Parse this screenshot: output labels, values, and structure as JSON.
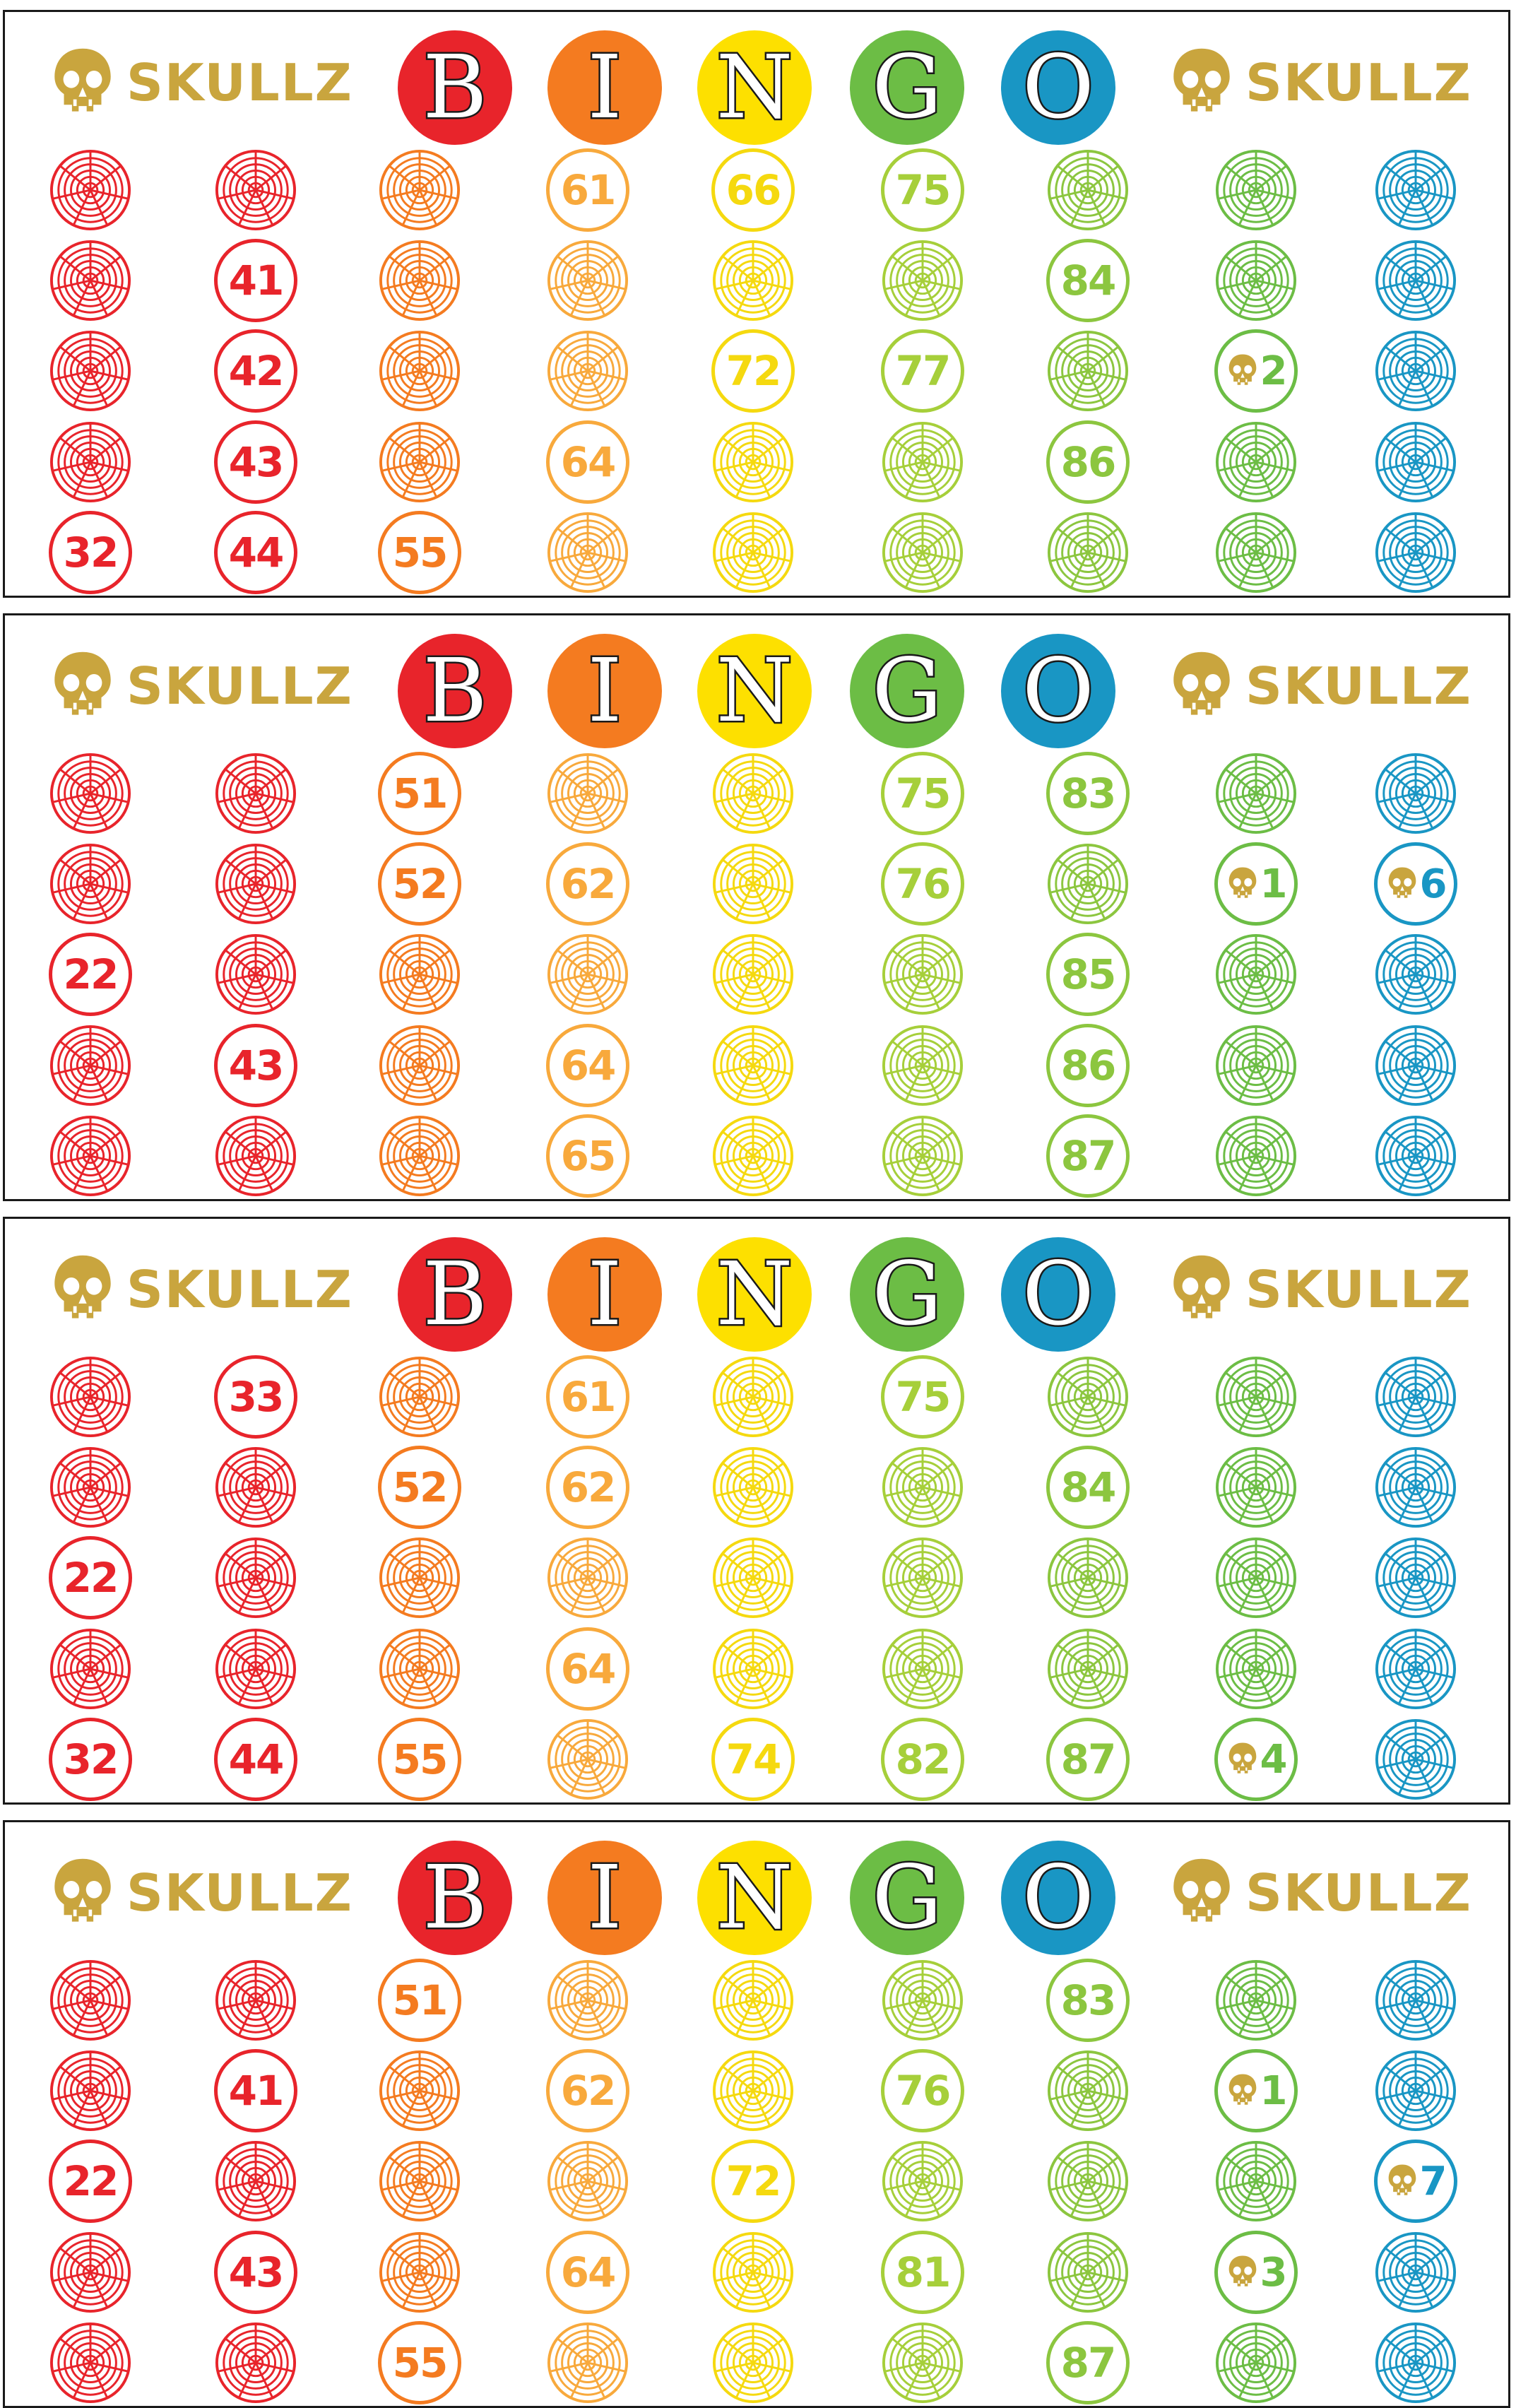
{
  "brand_label": "SKULLZ",
  "letters": [
    "B",
    "I",
    "N",
    "G",
    "O"
  ],
  "letter_colors": [
    "#e8242b",
    "#f47b20",
    "#fde000",
    "#6cbd45",
    "#1996c4"
  ],
  "column_colors": [
    "#e8242b",
    "#e8242b",
    "#f47b20",
    "#f8a93c",
    "#f5d90f",
    "#a6cf3a",
    "#8cc63f",
    "#6cbd45",
    "#1996c4"
  ],
  "icons": {
    "brand": "skull-icon",
    "blank_slot": "spiderweb-icon"
  },
  "cards": [
    {
      "rows": [
        [
          "",
          "",
          "",
          "61",
          "66",
          "75",
          "",
          "",
          ""
        ],
        [
          "",
          "41",
          "",
          "",
          "",
          "",
          "84",
          "",
          ""
        ],
        [
          "",
          "42",
          "",
          "",
          "72",
          "77",
          "",
          "2",
          ""
        ],
        [
          "",
          "43",
          "",
          "64",
          "",
          "",
          "86",
          "",
          ""
        ],
        [
          "32",
          "44",
          "55",
          "",
          "",
          "",
          "",
          "",
          ""
        ]
      ]
    },
    {
      "rows": [
        [
          "",
          "",
          "51",
          "",
          "",
          "75",
          "83",
          "",
          ""
        ],
        [
          "",
          "",
          "52",
          "62",
          "",
          "76",
          "",
          "1",
          "6"
        ],
        [
          "22",
          "",
          "",
          "",
          "",
          "",
          "85",
          "",
          ""
        ],
        [
          "",
          "43",
          "",
          "64",
          "",
          "",
          "86",
          "",
          ""
        ],
        [
          "",
          "",
          "",
          "65",
          "",
          "",
          "87",
          "",
          ""
        ]
      ]
    },
    {
      "rows": [
        [
          "",
          "33",
          "",
          "61",
          "",
          "75",
          "",
          "",
          ""
        ],
        [
          "",
          "",
          "52",
          "62",
          "",
          "",
          "84",
          "",
          ""
        ],
        [
          "22",
          "",
          "",
          "",
          "",
          "",
          "",
          "",
          ""
        ],
        [
          "",
          "",
          "",
          "64",
          "",
          "",
          "",
          "",
          ""
        ],
        [
          "32",
          "44",
          "55",
          "",
          "74",
          "82",
          "87",
          "4",
          ""
        ]
      ]
    },
    {
      "rows": [
        [
          "",
          "",
          "51",
          "",
          "",
          "",
          "83",
          "",
          ""
        ],
        [
          "",
          "41",
          "",
          "62",
          "",
          "76",
          "",
          "1",
          ""
        ],
        [
          "22",
          "",
          "",
          "",
          "72",
          "",
          "",
          "",
          "7"
        ],
        [
          "",
          "43",
          "",
          "64",
          "",
          "81",
          "",
          "3",
          ""
        ],
        [
          "",
          "",
          "55",
          "",
          "",
          "",
          "87",
          "",
          ""
        ]
      ]
    }
  ]
}
